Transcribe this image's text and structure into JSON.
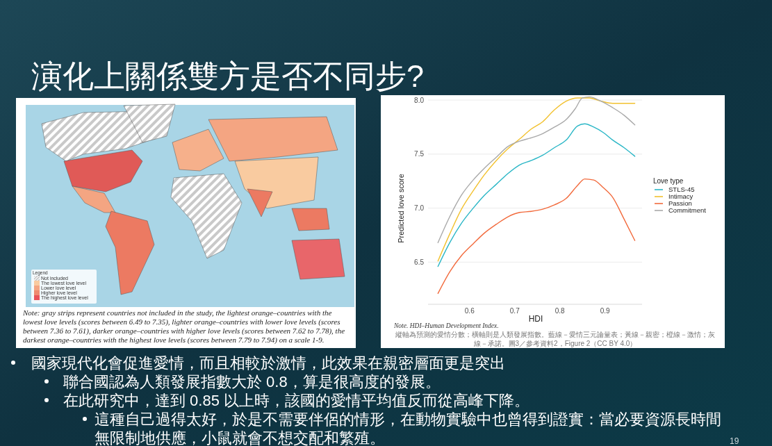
{
  "chart_data": {
    "type": "line",
    "title": "演化上關係雙方是否不同步?",
    "xlabel": "HDI",
    "ylabel": "Predicted love score",
    "legend_title": "Love type",
    "legend": "right",
    "grid": "y",
    "line_style": "solid",
    "xlim": [
      0.508,
      0.982
    ],
    "ylim": [
      6.11,
      8.03
    ],
    "xticks": [
      0.6,
      0.7,
      0.8,
      0.9
    ],
    "yticks": [
      6.5,
      {
        "value": 7,
        "label": "7.0"
      },
      7.5,
      {
        "value": 8,
        "label": "8.0"
      }
    ],
    "series": [
      {
        "name": "STLS-45",
        "color": "#29b6c6",
        "x": [
          0.53,
          0.556,
          0.582,
          0.608,
          0.633,
          0.659,
          0.685,
          0.711,
          0.736,
          0.762,
          0.788,
          0.814,
          0.839,
          0.855,
          0.875,
          0.896,
          0.917,
          0.942,
          0.966
        ],
        "values": [
          6.46,
          6.68,
          6.86,
          7.0,
          7.12,
          7.22,
          7.32,
          7.4,
          7.44,
          7.49,
          7.56,
          7.63,
          7.76,
          7.78,
          7.75,
          7.7,
          7.63,
          7.56,
          7.48
        ]
      },
      {
        "name": "Intimacy",
        "color": "#f2c12e",
        "x": [
          0.53,
          0.556,
          0.582,
          0.608,
          0.633,
          0.659,
          0.685,
          0.711,
          0.736,
          0.762,
          0.788,
          0.814,
          0.839,
          0.865,
          0.891,
          0.917,
          0.942,
          0.966
        ],
        "values": [
          6.51,
          6.76,
          6.99,
          7.16,
          7.31,
          7.44,
          7.55,
          7.64,
          7.73,
          7.8,
          7.91,
          7.99,
          8.02,
          8.02,
          7.99,
          7.97,
          7.97,
          7.97
        ]
      },
      {
        "name": "Passion",
        "color": "#f26a3c",
        "x": [
          0.53,
          0.556,
          0.582,
          0.608,
          0.633,
          0.659,
          0.685,
          0.711,
          0.736,
          0.762,
          0.788,
          0.814,
          0.839,
          0.855,
          0.875,
          0.896,
          0.917,
          0.942,
          0.966
        ],
        "values": [
          6.21,
          6.41,
          6.56,
          6.67,
          6.77,
          6.85,
          6.92,
          6.96,
          6.97,
          6.99,
          7.03,
          7.09,
          7.21,
          7.27,
          7.26,
          7.19,
          7.1,
          6.9,
          6.7
        ]
      },
      {
        "name": "Commitment",
        "color": "#a9a9a9",
        "x": [
          0.53,
          0.556,
          0.582,
          0.608,
          0.633,
          0.659,
          0.685,
          0.711,
          0.736,
          0.762,
          0.788,
          0.814,
          0.834,
          0.85,
          0.865,
          0.891,
          0.917,
          0.942,
          0.966
        ],
        "values": [
          6.68,
          6.92,
          7.12,
          7.26,
          7.37,
          7.47,
          7.57,
          7.62,
          7.65,
          7.69,
          7.75,
          7.82,
          7.92,
          8.02,
          8.03,
          7.99,
          7.93,
          7.86,
          7.77
        ]
      }
    ],
    "annotations": [
      "Legend",
      "Not included",
      "The lowest love level",
      "Lower love level",
      "Higher love level",
      "The highest love level",
      "Note: gray strips represent countries not included in the study, the lightest orange–countries with the lowest love levels (scores between 6.49 to 7.35), lighter orange–countries with lower love levels (scores between 7.36 to 7.61), darker orange–countries with higher love levels (scores between 7.62 to 7.78), the darkest orange–countries with the highest love levels (scores between 7.79 to 7.94) on a scale 1-9.",
      "Note. HDI–Human Development Index.",
      "縱軸為預測的愛情分數；橫軸則是人類發展指數。藍線－愛情三元論量表；黃線－親密；橙線－激情；灰線－承諾。圖3／參考資料2，Figure 2（CC BY 4.0）",
      "國家現代化會促進愛情，而且相較於激情，此效果在親密層面更是突出",
      "聯合國認為人類發展指數大於 0.8，算是很高度的發展。",
      "在此研究中，達到 0.85 以上時，該國的愛情平均值反而從高峰下降。",
      "這種自己過得太好，於是不需要伴侶的情形，在動物實驗中也曾得到證實：當必要資源長時間無限制地供應，小鼠就會不想交配和繁殖。",
      "19"
    ]
  }
}
